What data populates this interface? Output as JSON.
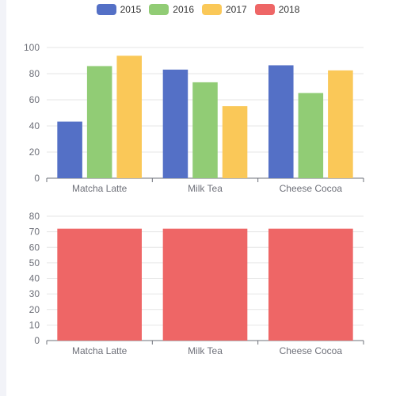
{
  "legend": [
    {
      "name": "2015",
      "color": "#5470c6"
    },
    {
      "name": "2016",
      "color": "#91cc75"
    },
    {
      "name": "2017",
      "color": "#fac858"
    },
    {
      "name": "2018",
      "color": "#ee6666"
    }
  ],
  "chart_data": [
    {
      "type": "bar",
      "categories": [
        "Matcha Latte",
        "Milk Tea",
        "Cheese Cocoa"
      ],
      "series": [
        {
          "name": "2015",
          "values": [
            43.3,
            83.1,
            86.4
          ],
          "color": "#5470c6"
        },
        {
          "name": "2016",
          "values": [
            85.8,
            73.4,
            65.2
          ],
          "color": "#91cc75"
        },
        {
          "name": "2017",
          "values": [
            93.7,
            55.1,
            82.5
          ],
          "color": "#fac858"
        }
      ],
      "ylim": [
        0,
        100
      ],
      "yticks": [
        0,
        20,
        40,
        60,
        80,
        100
      ],
      "grid": true
    },
    {
      "type": "bar",
      "categories": [
        "Matcha Latte",
        "Milk Tea",
        "Cheese Cocoa"
      ],
      "series": [
        {
          "name": "2018",
          "values": [
            72,
            72,
            72
          ],
          "color": "#ee6666"
        }
      ],
      "ylim": [
        0,
        80
      ],
      "yticks": [
        0,
        10,
        20,
        30,
        40,
        50,
        60,
        70,
        80
      ],
      "grid": true
    }
  ]
}
